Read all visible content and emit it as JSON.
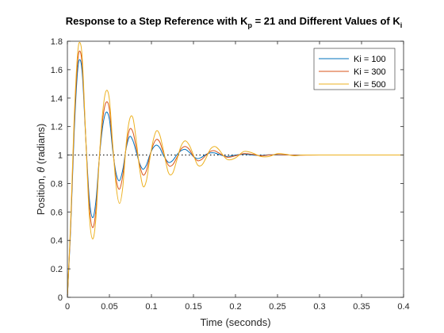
{
  "chart_data": {
    "type": "line",
    "title": "Response to a Step Reference with K",
    "title_kp_sub": "p",
    "title_mid": " = 21 and Different Values of K",
    "title_ki_sub": "i",
    "xlabel": "Time (seconds)",
    "ylabel_prefix": "Position, ",
    "ylabel_symbol": "θ",
    "ylabel_suffix": " (radians)",
    "xlim": [
      0,
      0.4
    ],
    "ylim": [
      0,
      1.8
    ],
    "xticks": [
      0,
      0.05,
      0.1,
      0.15,
      0.2,
      0.25,
      0.3,
      0.35,
      0.4
    ],
    "xtick_labels": [
      "0",
      "0.05",
      "0.1",
      "0.15",
      "0.2",
      "0.25",
      "0.3",
      "0.35",
      "0.4"
    ],
    "yticks": [
      0,
      0.2,
      0.4,
      0.6,
      0.8,
      1,
      1.2,
      1.4,
      1.6,
      1.8
    ],
    "ytick_labels": [
      "0",
      "0.2",
      "0.4",
      "0.6",
      "0.8",
      "1",
      "1.2",
      "1.4",
      "1.6",
      "1.8"
    ],
    "grid": false,
    "legend_position": "top-right",
    "reference_line": {
      "y": 1,
      "style": "dotted",
      "color": "#000000"
    },
    "series": [
      {
        "name": "Ki = 100",
        "color": "#0072BD",
        "points": [
          [
            0,
            0
          ],
          [
            0.004,
            0.5
          ],
          [
            0.008,
            1.15
          ],
          [
            0.012,
            1.58
          ],
          [
            0.015,
            1.67
          ],
          [
            0.018,
            1.55
          ],
          [
            0.022,
            1.1
          ],
          [
            0.026,
            0.7
          ],
          [
            0.03,
            0.56
          ],
          [
            0.034,
            0.68
          ],
          [
            0.038,
            0.98
          ],
          [
            0.042,
            1.2
          ],
          [
            0.046,
            1.3
          ],
          [
            0.05,
            1.25
          ],
          [
            0.054,
            1.03
          ],
          [
            0.058,
            0.87
          ],
          [
            0.062,
            0.82
          ],
          [
            0.066,
            0.9
          ],
          [
            0.07,
            1.05
          ],
          [
            0.074,
            1.13
          ],
          [
            0.078,
            1.1
          ],
          [
            0.082,
            1.02
          ],
          [
            0.086,
            0.94
          ],
          [
            0.09,
            0.9
          ],
          [
            0.094,
            0.93
          ],
          [
            0.098,
            1.0
          ],
          [
            0.102,
            1.05
          ],
          [
            0.106,
            1.07
          ],
          [
            0.11,
            1.05
          ],
          [
            0.114,
            1.0
          ],
          [
            0.12,
            0.95
          ],
          [
            0.125,
            0.96
          ],
          [
            0.13,
            1.0
          ],
          [
            0.135,
            1.03
          ],
          [
            0.14,
            1.04
          ],
          [
            0.145,
            1.02
          ],
          [
            0.15,
            0.99
          ],
          [
            0.155,
            0.975
          ],
          [
            0.16,
            0.985
          ],
          [
            0.165,
            1.005
          ],
          [
            0.17,
            1.015
          ],
          [
            0.175,
            1.015
          ],
          [
            0.18,
            1.005
          ],
          [
            0.19,
            0.99
          ],
          [
            0.2,
            1.0
          ],
          [
            0.21,
            1.005
          ],
          [
            0.22,
            1.0
          ],
          [
            0.23,
            0.997
          ],
          [
            0.24,
            1.002
          ],
          [
            0.25,
            1.0
          ],
          [
            0.27,
            1.0
          ],
          [
            0.3,
            1.0
          ],
          [
            0.35,
            1.0
          ],
          [
            0.4,
            1.0
          ]
        ]
      },
      {
        "name": "Ki = 300",
        "color": "#D95319",
        "points": [
          [
            0,
            0
          ],
          [
            0.004,
            0.52
          ],
          [
            0.008,
            1.2
          ],
          [
            0.012,
            1.64
          ],
          [
            0.015,
            1.73
          ],
          [
            0.018,
            1.6
          ],
          [
            0.022,
            1.1
          ],
          [
            0.026,
            0.65
          ],
          [
            0.03,
            0.49
          ],
          [
            0.034,
            0.62
          ],
          [
            0.038,
            0.98
          ],
          [
            0.042,
            1.25
          ],
          [
            0.046,
            1.37
          ],
          [
            0.05,
            1.32
          ],
          [
            0.054,
            1.05
          ],
          [
            0.058,
            0.83
          ],
          [
            0.062,
            0.76
          ],
          [
            0.066,
            0.86
          ],
          [
            0.07,
            1.06
          ],
          [
            0.074,
            1.18
          ],
          [
            0.078,
            1.16
          ],
          [
            0.082,
            1.05
          ],
          [
            0.086,
            0.93
          ],
          [
            0.09,
            0.86
          ],
          [
            0.094,
            0.89
          ],
          [
            0.098,
            0.99
          ],
          [
            0.102,
            1.07
          ],
          [
            0.106,
            1.11
          ],
          [
            0.11,
            1.09
          ],
          [
            0.114,
            1.02
          ],
          [
            0.12,
            0.93
          ],
          [
            0.125,
            0.93
          ],
          [
            0.13,
            0.98
          ],
          [
            0.135,
            1.04
          ],
          [
            0.14,
            1.06
          ],
          [
            0.145,
            1.04
          ],
          [
            0.15,
            0.99
          ],
          [
            0.155,
            0.96
          ],
          [
            0.16,
            0.97
          ],
          [
            0.165,
            1.0
          ],
          [
            0.17,
            1.025
          ],
          [
            0.175,
            1.03
          ],
          [
            0.18,
            1.015
          ],
          [
            0.19,
            0.985
          ],
          [
            0.2,
            0.995
          ],
          [
            0.21,
            1.01
          ],
          [
            0.22,
            1.005
          ],
          [
            0.23,
            0.995
          ],
          [
            0.24,
            1.0
          ],
          [
            0.25,
            1.003
          ],
          [
            0.27,
            0.999
          ],
          [
            0.3,
            1.0
          ],
          [
            0.35,
            1.0
          ],
          [
            0.4,
            1.0
          ]
        ]
      },
      {
        "name": "Ki = 500",
        "color": "#EDB120",
        "points": [
          [
            0,
            0
          ],
          [
            0.004,
            0.55
          ],
          [
            0.008,
            1.25
          ],
          [
            0.012,
            1.7
          ],
          [
            0.015,
            1.79
          ],
          [
            0.018,
            1.65
          ],
          [
            0.022,
            1.1
          ],
          [
            0.026,
            0.58
          ],
          [
            0.03,
            0.41
          ],
          [
            0.034,
            0.56
          ],
          [
            0.038,
            0.98
          ],
          [
            0.042,
            1.3
          ],
          [
            0.046,
            1.45
          ],
          [
            0.05,
            1.39
          ],
          [
            0.054,
            1.07
          ],
          [
            0.058,
            0.78
          ],
          [
            0.062,
            0.66
          ],
          [
            0.066,
            0.78
          ],
          [
            0.07,
            1.08
          ],
          [
            0.074,
            1.25
          ],
          [
            0.078,
            1.26
          ],
          [
            0.082,
            1.1
          ],
          [
            0.086,
            0.9
          ],
          [
            0.09,
            0.78
          ],
          [
            0.094,
            0.82
          ],
          [
            0.098,
            0.97
          ],
          [
            0.102,
            1.1
          ],
          [
            0.106,
            1.17
          ],
          [
            0.11,
            1.14
          ],
          [
            0.114,
            1.04
          ],
          [
            0.12,
            0.88
          ],
          [
            0.125,
            0.87
          ],
          [
            0.13,
            0.96
          ],
          [
            0.135,
            1.06
          ],
          [
            0.14,
            1.1
          ],
          [
            0.145,
            1.07
          ],
          [
            0.15,
            1.0
          ],
          [
            0.155,
            0.93
          ],
          [
            0.16,
            0.93
          ],
          [
            0.165,
            0.98
          ],
          [
            0.17,
            1.04
          ],
          [
            0.175,
            1.06
          ],
          [
            0.18,
            1.04
          ],
          [
            0.19,
            0.97
          ],
          [
            0.2,
            0.98
          ],
          [
            0.21,
            1.025
          ],
          [
            0.22,
            1.015
          ],
          [
            0.23,
            0.99
          ],
          [
            0.24,
            0.99
          ],
          [
            0.25,
            1.01
          ],
          [
            0.26,
            1.005
          ],
          [
            0.27,
            0.995
          ],
          [
            0.28,
            1.0
          ],
          [
            0.3,
            1.0
          ],
          [
            0.35,
            1.0
          ],
          [
            0.4,
            1.0
          ]
        ]
      }
    ]
  }
}
